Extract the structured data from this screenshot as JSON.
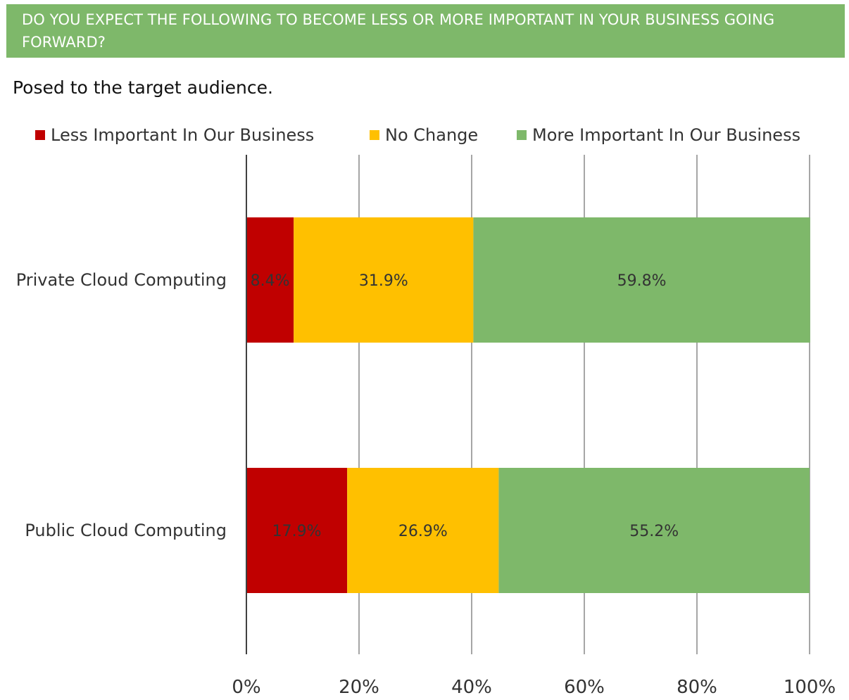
{
  "header": {
    "title": "DO YOU EXPECT THE FOLLOWING TO BECOME LESS OR MORE IMPORTANT IN YOUR BUSINESS GOING FORWARD?",
    "subtitle": "Posed to the target audience."
  },
  "chart_data": {
    "type": "bar",
    "orientation": "horizontal",
    "stacked": true,
    "categories": [
      "Private Cloud Computing",
      "Public Cloud Computing"
    ],
    "series": [
      {
        "name": "Less Important In Our Business",
        "color": "#c00000",
        "values": [
          8.4,
          17.9
        ],
        "labels": [
          "8.4%",
          "17.9%"
        ]
      },
      {
        "name": "No Change",
        "color": "#ffc000",
        "values": [
          31.9,
          26.9
        ],
        "labels": [
          "31.9%",
          "26.9%"
        ]
      },
      {
        "name": "More Important In Our Business",
        "color": "#7eb86a",
        "values": [
          59.8,
          55.2
        ],
        "labels": [
          "59.8%",
          "55.2%"
        ]
      }
    ],
    "xlim": [
      0,
      100
    ],
    "xticks": [
      "0%",
      "20%",
      "40%",
      "60%",
      "80%",
      "100%"
    ],
    "grid": true,
    "legend": "top"
  }
}
